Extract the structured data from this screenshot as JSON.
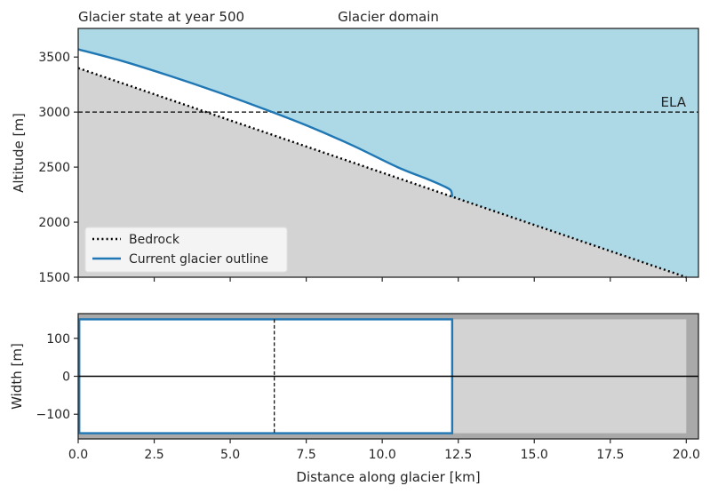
{
  "chart_data": [
    {
      "type": "line",
      "title_left": "Glacier state at year 500",
      "title_center": "Glacier domain",
      "xlabel": "",
      "ylabel": "Altitude [m]",
      "xlim": [
        0,
        20.4
      ],
      "ylim": [
        1500,
        3760
      ],
      "yticks": [
        "1500",
        "2000",
        "2500",
        "3000",
        "3500"
      ],
      "ela": {
        "label": "ELA",
        "altitude": 3000
      },
      "bedrock": {
        "name": "Bedrock",
        "x": [
          0,
          20.0
        ],
        "y": [
          3400,
          1500
        ]
      },
      "glacier_outline": {
        "name": "Current glacier outline",
        "x": [
          0,
          1.5,
          3,
          4.5,
          6,
          7.5,
          9,
          10.5,
          11.5,
          12.0,
          12.25,
          12.3
        ],
        "y": [
          3570,
          3460,
          3330,
          3190,
          3040,
          2880,
          2700,
          2500,
          2390,
          2330,
          2290,
          2230
        ]
      },
      "colors": {
        "ice": "#add8e6",
        "ground": "#d3d3d3",
        "glacier_line": "#1f77b4",
        "bedrock": "#000000"
      },
      "legend": {
        "placement": "lower-left",
        "entries": [
          "Bedrock",
          "Current glacier outline"
        ]
      }
    },
    {
      "type": "area",
      "xlabel": "Distance along glacier [km]",
      "ylabel": "Width [m]",
      "xlim": [
        0,
        20.4
      ],
      "ylim": [
        -165,
        165
      ],
      "xticks": [
        "0.0",
        "2.5",
        "5.0",
        "7.5",
        "10.0",
        "12.5",
        "15.0",
        "17.5",
        "20.0"
      ],
      "yticks": [
        "-100",
        "0",
        "100"
      ],
      "valley": {
        "x_start": 0,
        "x_end": 20.0,
        "half_width": 150
      },
      "glacier": {
        "x_start": 0,
        "x_end": 12.3,
        "half_width": 150
      },
      "ela_distance": 6.45,
      "colors": {
        "outside": "#a9a9a9",
        "valley": "#d3d3d3",
        "glacier_fill": "#ffffff",
        "glacier_edge": "#1f77b4"
      }
    }
  ]
}
